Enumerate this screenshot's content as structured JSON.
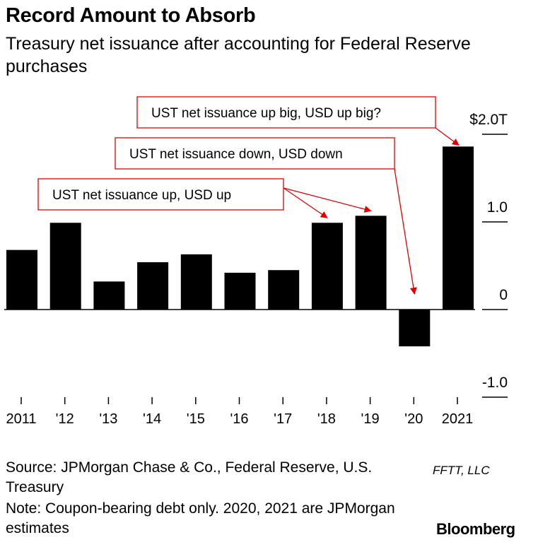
{
  "header": {
    "title": "Record Amount to Absorb",
    "subtitle": "Treasury net issuance after accounting for Federal Reserve purchases"
  },
  "chart_data": {
    "type": "bar",
    "categories": [
      "2011",
      "'12",
      "'13",
      "'14",
      "'15",
      "'16",
      "'17",
      "'18",
      "'19",
      "'20",
      "2021"
    ],
    "values": [
      0.68,
      0.99,
      0.32,
      0.54,
      0.63,
      0.42,
      0.45,
      0.99,
      1.07,
      -0.42,
      1.86
    ],
    "ylim": [
      -1.0,
      2.0
    ],
    "y_ticks": [
      {
        "value": 2.0,
        "label": "$2.0T"
      },
      {
        "value": 1.0,
        "label": "1.0"
      },
      {
        "value": 0,
        "label": "0"
      },
      {
        "value": -1.0,
        "label": "-1.0"
      }
    ],
    "bar_color": "#000000",
    "annotation_color": "#e00000",
    "grid": false,
    "annotations": [
      {
        "text": "UST net issuance up big, USD up big?",
        "targets": [
          10
        ]
      },
      {
        "text": "UST net issuance down, USD down",
        "targets": [
          9
        ]
      },
      {
        "text": "UST net issuance up, USD up",
        "targets": [
          7,
          8
        ]
      }
    ]
  },
  "footer": {
    "source": "Source: JPMorgan Chase & Co., Federal Reserve, U.S. Treasury",
    "note": "Note: Coupon-bearing debt only. 2020, 2021 are JPMorgan estimates",
    "watermark": "FFTT, LLC",
    "brand": "Bloomberg"
  }
}
